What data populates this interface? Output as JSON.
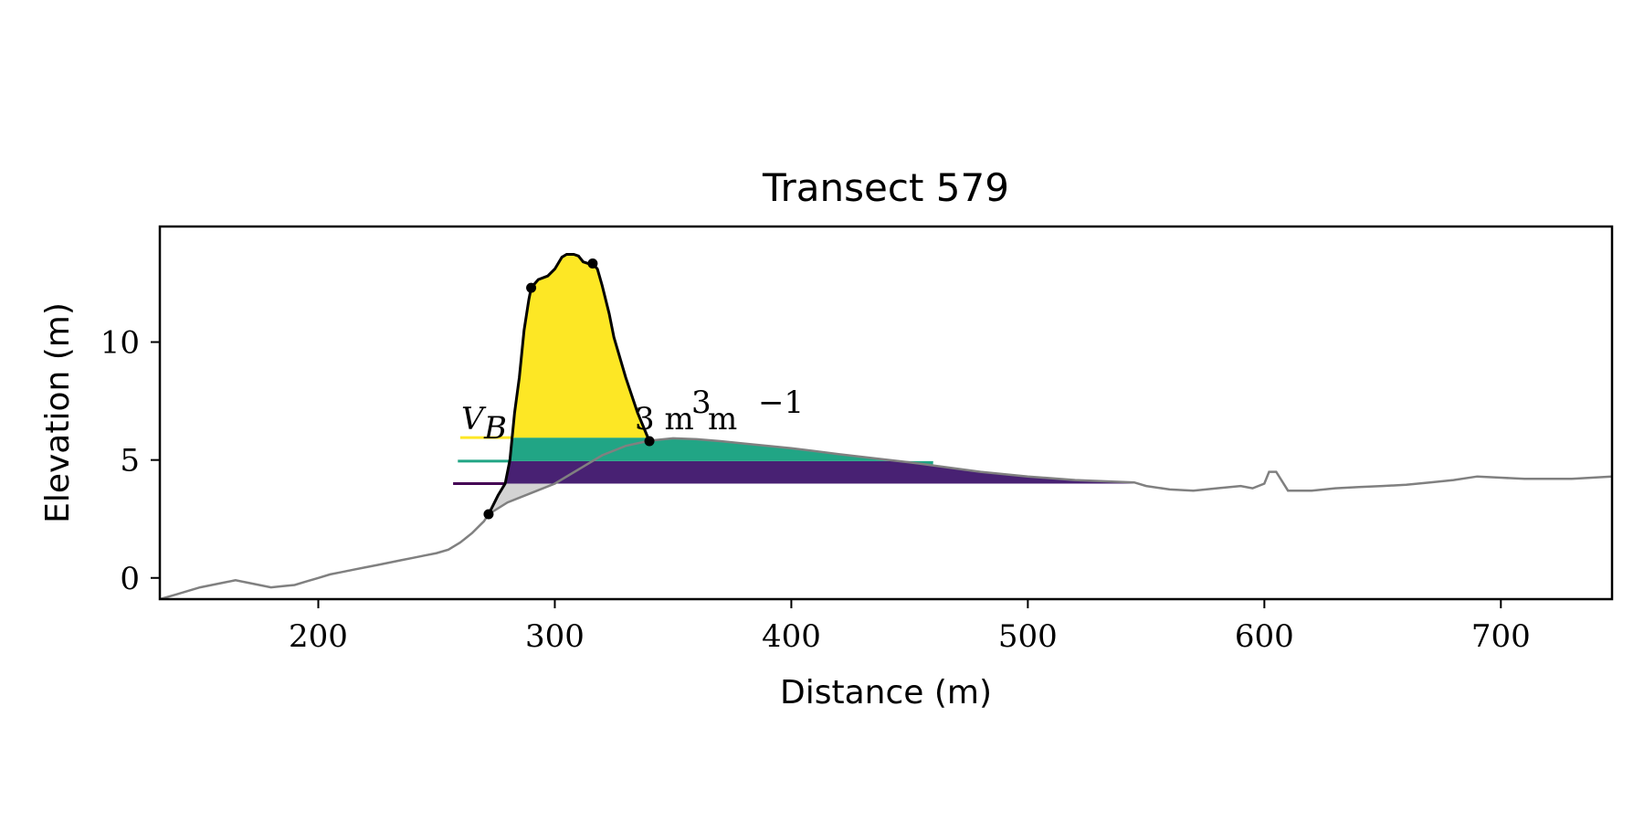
{
  "chart_data": {
    "type": "line",
    "title": "Transect 579",
    "xlabel": "Distance (m)",
    "ylabel": "Elevation (m)",
    "xlim": [
      133,
      747
    ],
    "ylim": [
      -0.9,
      14.9
    ],
    "xticks": [
      200,
      300,
      400,
      500,
      600,
      700
    ],
    "yticks": [
      0,
      5,
      10
    ],
    "grid": false,
    "annotations": [
      {
        "label_var": "V",
        "label_sub": "B",
        "trailing": "3 m",
        "unit_exp1": "3",
        "unit_mid": " m",
        "unit_exp2": "−1"
      }
    ],
    "profile": {
      "name": "",
      "color": "#808080",
      "x": [
        133,
        140,
        150,
        160,
        165,
        170,
        175,
        180,
        185,
        190,
        195,
        200,
        205,
        210,
        215,
        220,
        225,
        230,
        235,
        240,
        245,
        250,
        255,
        260,
        265,
        270,
        272,
        280,
        290,
        300,
        310,
        320,
        330,
        340,
        350,
        360,
        370,
        380,
        400,
        420,
        450,
        480,
        500,
        520,
        545,
        550,
        560,
        570,
        580,
        590,
        595,
        600,
        602,
        605,
        610,
        620,
        630,
        640,
        650,
        660,
        670,
        680,
        690,
        700,
        710,
        720,
        730,
        747
      ],
      "y": [
        -0.9,
        -0.7,
        -0.4,
        -0.2,
        -0.1,
        -0.2,
        -0.3,
        -0.4,
        -0.35,
        -0.3,
        -0.15,
        0.0,
        0.15,
        0.25,
        0.35,
        0.45,
        0.55,
        0.65,
        0.75,
        0.85,
        0.95,
        1.05,
        1.2,
        1.5,
        1.9,
        2.4,
        2.7,
        3.2,
        3.6,
        4.0,
        4.6,
        5.2,
        5.6,
        5.82,
        5.92,
        5.88,
        5.8,
        5.7,
        5.5,
        5.25,
        4.9,
        4.5,
        4.3,
        4.15,
        4.05,
        3.9,
        3.75,
        3.7,
        3.8,
        3.9,
        3.8,
        4.0,
        4.5,
        4.5,
        3.7,
        3.7,
        3.8,
        3.85,
        3.9,
        3.95,
        4.05,
        4.15,
        4.3,
        4.25,
        4.2,
        4.2,
        4.2,
        4.3
      ]
    },
    "dune": {
      "name": "",
      "color": "#000000",
      "fill": "#fde725",
      "x": [
        272,
        276,
        279,
        281,
        283,
        285,
        287,
        289,
        290,
        293,
        297,
        300,
        303,
        305,
        308,
        310,
        312,
        315,
        316,
        318,
        320,
        323,
        325,
        330,
        335,
        340
      ],
      "y": [
        2.7,
        3.5,
        4.0,
        5.0,
        7.0,
        8.5,
        10.5,
        11.8,
        12.3,
        12.65,
        12.8,
        13.1,
        13.6,
        13.72,
        13.72,
        13.65,
        13.4,
        13.3,
        13.33,
        13.1,
        12.4,
        11.2,
        10.2,
        8.5,
        7.0,
        5.8
      ]
    },
    "markers": [
      {
        "x": 272,
        "y": 2.7
      },
      {
        "x": 290,
        "y": 12.3
      },
      {
        "x": 316,
        "y": 13.33
      },
      {
        "x": 340,
        "y": 5.8
      }
    ],
    "lower_fill": {
      "color": "#d3d3d3",
      "x_start": 272,
      "x_end": 300,
      "y_base": 4.0
    },
    "bands": [
      {
        "name": "",
        "color": "#fde725",
        "y": 5.95,
        "x_line_start": 260,
        "x_fill_end": 340
      },
      {
        "name": "",
        "color": "#21a585",
        "y": 4.95,
        "x_line_start": 259,
        "x_fill_end": 460
      },
      {
        "name": "",
        "color": "#440154",
        "fill": "#482173",
        "y": 4.0,
        "x_line_start": 257,
        "x_fill_end": 548
      }
    ]
  }
}
